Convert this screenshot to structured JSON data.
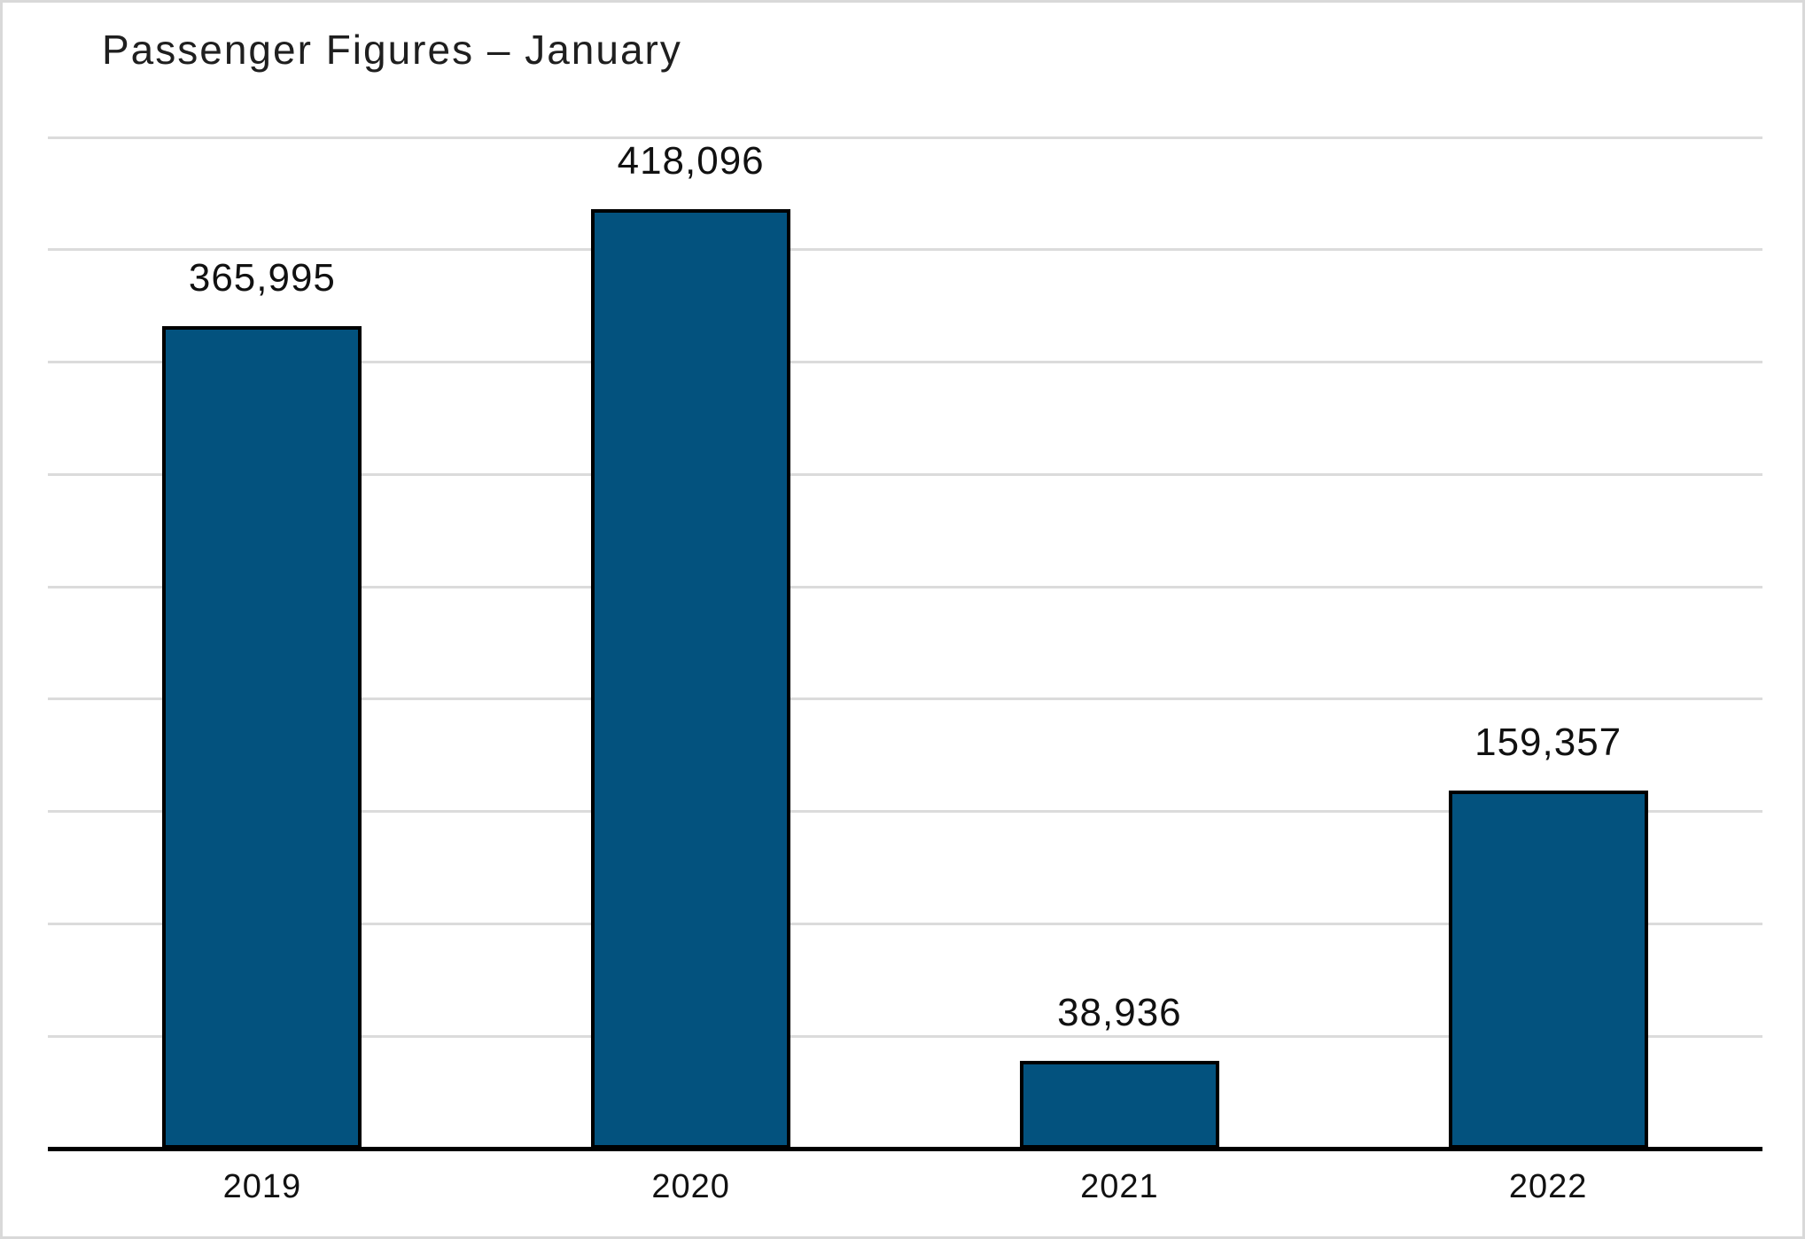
{
  "chart_data": {
    "type": "bar",
    "title": "Passenger Figures – January",
    "categories": [
      "2019",
      "2020",
      "2021",
      "2022"
    ],
    "values": [
      365995,
      418096,
      38936,
      159357
    ],
    "value_labels": [
      "365,995",
      "418,096",
      "38,936",
      "159,357"
    ],
    "xlabel": "",
    "ylabel": "",
    "ylim": [
      0,
      460000
    ],
    "gridline_interval": 50000,
    "gridline_max": 450000,
    "grid": "horizontal",
    "legend": "none",
    "y_tick_labels_shown": false,
    "colors": {
      "bar_fill": "#03527E",
      "bar_border": "#000000",
      "gridline": "#DBDBDB",
      "axis_line": "#000000",
      "background": "#FFFFFF",
      "frame_border": "#D9D9D9",
      "text": "#1F1F1F"
    }
  }
}
